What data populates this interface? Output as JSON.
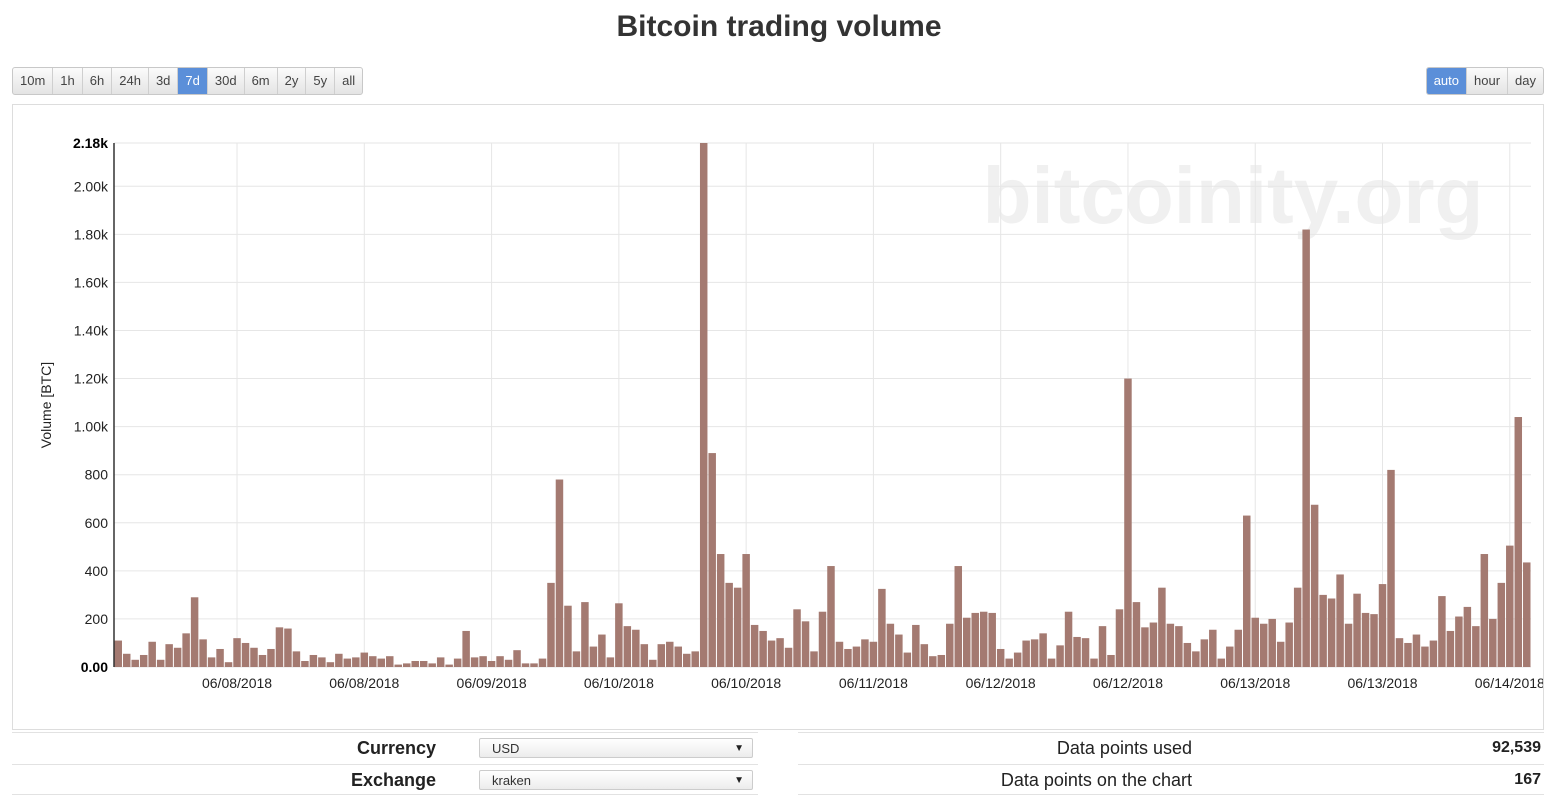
{
  "title": "Bitcoin trading volume",
  "range_buttons": [
    {
      "label": "10m",
      "active": false
    },
    {
      "label": "1h",
      "active": false
    },
    {
      "label": "6h",
      "active": false
    },
    {
      "label": "24h",
      "active": false
    },
    {
      "label": "3d",
      "active": false
    },
    {
      "label": "7d",
      "active": true
    },
    {
      "label": "30d",
      "active": false
    },
    {
      "label": "6m",
      "active": false
    },
    {
      "label": "2y",
      "active": false
    },
    {
      "label": "5y",
      "active": false
    },
    {
      "label": "all",
      "active": false
    }
  ],
  "resolution_buttons": [
    {
      "label": "auto",
      "active": true
    },
    {
      "label": "hour",
      "active": false
    },
    {
      "label": "day",
      "active": false
    }
  ],
  "watermark": "bitcoinity.org",
  "colors": {
    "bar": "#a47a71",
    "active": "#5b8fd9",
    "grid": "#e6e6e6"
  },
  "controls": {
    "currency_label": "Currency",
    "currency_value": "USD",
    "exchange_label": "Exchange",
    "exchange_value": "kraken"
  },
  "stats": {
    "points_used_label": "Data points used",
    "points_used_value": "92,539",
    "points_chart_label": "Data points on the chart",
    "points_chart_value": "167"
  },
  "chart_data": {
    "type": "bar",
    "title": "Bitcoin trading volume",
    "ylabel": "Volume [BTC]",
    "xlabel": "",
    "ylim": [
      0,
      2180
    ],
    "yticks": [
      {
        "v": 0,
        "label": "0.00"
      },
      {
        "v": 200,
        "label": "200"
      },
      {
        "v": 400,
        "label": "400"
      },
      {
        "v": 600,
        "label": "600"
      },
      {
        "v": 800,
        "label": "800"
      },
      {
        "v": 1000,
        "label": "1.00k"
      },
      {
        "v": 1200,
        "label": "1.20k"
      },
      {
        "v": 1400,
        "label": "1.40k"
      },
      {
        "v": 1600,
        "label": "1.60k"
      },
      {
        "v": 1800,
        "label": "1.80k"
      },
      {
        "v": 2000,
        "label": "2.00k"
      },
      {
        "v": 2180,
        "label": "2.18k"
      }
    ],
    "xticks": [
      {
        "i": 14.5,
        "label": "06/08/2018"
      },
      {
        "i": 29.5,
        "label": "06/08/2018"
      },
      {
        "i": 44.5,
        "label": "06/09/2018"
      },
      {
        "i": 59.5,
        "label": "06/10/2018"
      },
      {
        "i": 74.5,
        "label": "06/10/2018"
      },
      {
        "i": 89.5,
        "label": "06/11/2018"
      },
      {
        "i": 104.5,
        "label": "06/12/2018"
      },
      {
        "i": 119.5,
        "label": "06/12/2018"
      },
      {
        "i": 134.5,
        "label": "06/13/2018"
      },
      {
        "i": 149.5,
        "label": "06/13/2018"
      },
      {
        "i": 164.5,
        "label": "06/14/2018"
      }
    ],
    "values": [
      110,
      55,
      30,
      50,
      105,
      30,
      95,
      80,
      140,
      290,
      115,
      40,
      75,
      20,
      120,
      100,
      80,
      50,
      75,
      165,
      160,
      65,
      25,
      50,
      40,
      20,
      55,
      35,
      40,
      60,
      45,
      35,
      45,
      10,
      15,
      25,
      25,
      15,
      40,
      10,
      35,
      150,
      40,
      45,
      25,
      45,
      30,
      70,
      15,
      15,
      35,
      350,
      780,
      255,
      65,
      270,
      85,
      135,
      40,
      265,
      170,
      155,
      95,
      30,
      95,
      105,
      85,
      55,
      65,
      2180,
      890,
      470,
      350,
      330,
      470,
      175,
      150,
      110,
      120,
      80,
      240,
      190,
      65,
      230,
      420,
      105,
      75,
      85,
      115,
      105,
      325,
      180,
      135,
      60,
      175,
      95,
      45,
      50,
      180,
      420,
      205,
      225,
      230,
      225,
      75,
      35,
      60,
      110,
      115,
      140,
      35,
      90,
      230,
      125,
      120,
      35,
      170,
      50,
      240,
      1200,
      270,
      165,
      185,
      330,
      180,
      170,
      100,
      65,
      115,
      155,
      35,
      85,
      155,
      630,
      205,
      180,
      200,
      105,
      185,
      330,
      1820,
      675,
      300,
      285,
      385,
      180,
      305,
      225,
      220,
      345,
      820,
      120,
      100,
      135,
      85,
      110,
      295,
      150,
      210,
      250,
      170,
      470,
      200,
      350,
      505,
      1040,
      435
    ]
  }
}
